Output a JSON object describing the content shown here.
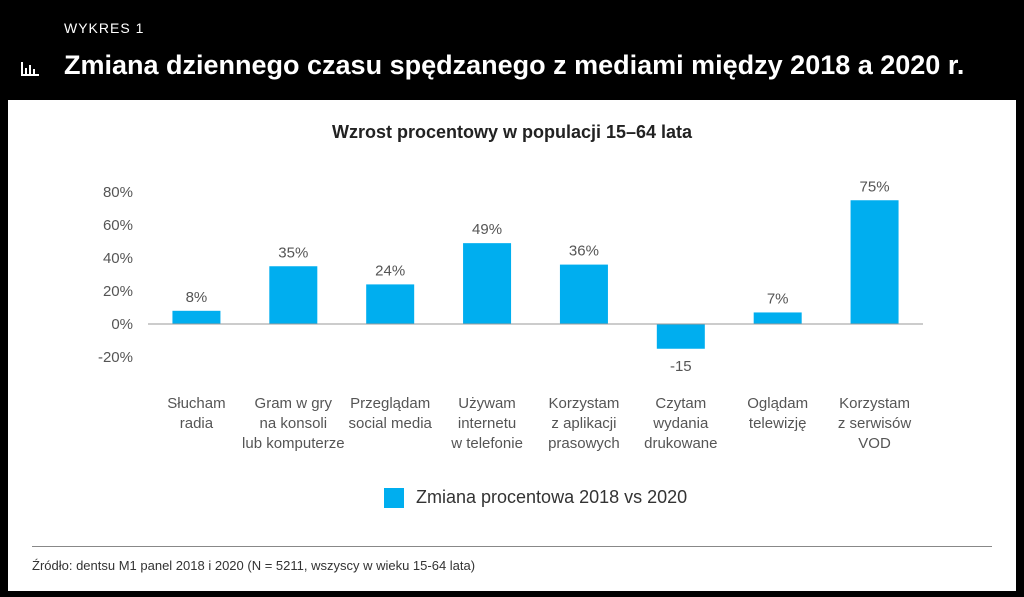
{
  "header": {
    "label": "WYKRES 1",
    "title": "Zmiana dziennego czasu spędzanego z mediami między 2018 a 2020 r.",
    "icon": "bar-chart-icon"
  },
  "colors": {
    "bar": "#00aeef",
    "background": "#000000",
    "panel": "#ffffff"
  },
  "chart_data": {
    "type": "bar",
    "subtitle": "Wzrost procentowy w populacji 15–64 lata",
    "categories": [
      [
        "Słucham",
        "radia"
      ],
      [
        "Gram w gry",
        "na konsoli",
        "lub komputerze"
      ],
      [
        "Przeglądam",
        "social media"
      ],
      [
        "Używam",
        "internetu",
        "w telefonie"
      ],
      [
        "Korzystam",
        "z aplikacji",
        "prasowych"
      ],
      [
        "Czytam",
        "wydania",
        "drukowane"
      ],
      [
        "Oglądam",
        "telewizję"
      ],
      [
        "Korzystam",
        "z serwisów",
        "VOD"
      ]
    ],
    "series": [
      {
        "name": "Zmiana procentowa 2018 vs 2020",
        "values": [
          8,
          35,
          24,
          49,
          36,
          -15,
          7,
          75
        ],
        "labels": [
          "8%",
          "35%",
          "24%",
          "49%",
          "36%",
          "-15",
          "7%",
          "75%"
        ]
      }
    ],
    "yticks": [
      80,
      60,
      40,
      20,
      0,
      -20
    ],
    "ytick_labels": [
      "80%",
      "60%",
      "40%",
      "20%",
      "0%",
      "-20%"
    ],
    "ylim": [
      -20,
      80
    ],
    "legend_position": "bottom-center",
    "grid": false
  },
  "source": "Źródło: dentsu M1 panel 2018 i 2020 (N = 5211, wszyscy w wieku 15-64 lata)"
}
